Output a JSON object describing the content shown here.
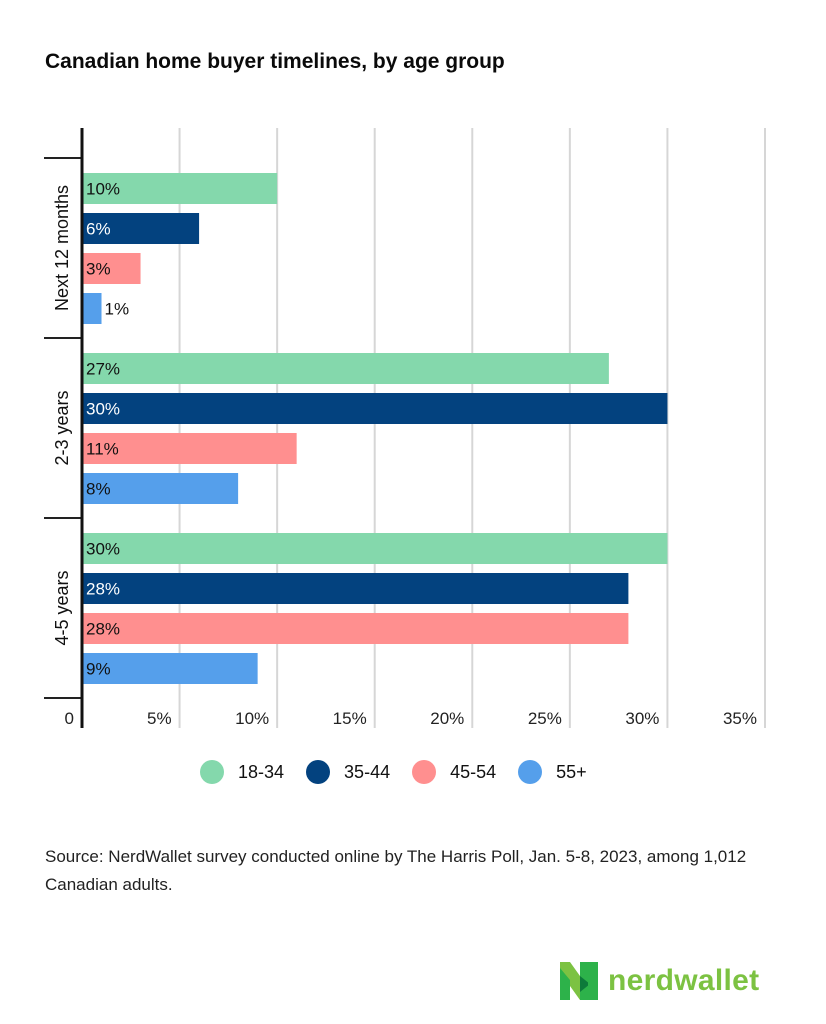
{
  "chart_data": {
    "type": "bar",
    "orientation": "horizontal",
    "title": "Canadian home buyer timelines, by age group",
    "xlabel": "",
    "ylabel": "",
    "xlim": [
      0,
      35
    ],
    "x_ticks": [
      "0",
      "5%",
      "10%",
      "15%",
      "20%",
      "25%",
      "30%",
      "35%"
    ],
    "x_tick_values": [
      0,
      5,
      10,
      15,
      20,
      25,
      30,
      35
    ],
    "grid": true,
    "categories": [
      "Next 12 months",
      "2-3 years",
      "4-5 years"
    ],
    "series": [
      {
        "name": "18-34",
        "color": "#84d8ac",
        "values": [
          10,
          27,
          30
        ],
        "labels": [
          "10%",
          "27%",
          "30%"
        ]
      },
      {
        "name": "35-44",
        "color": "#03427f",
        "values": [
          6,
          30,
          28
        ],
        "labels": [
          "6%",
          "30%",
          "28%"
        ]
      },
      {
        "name": "45-54",
        "color": "#ff8f8f",
        "values": [
          3,
          11,
          28
        ],
        "labels": [
          "3%",
          "11%",
          "28%"
        ]
      },
      {
        "name": "55+",
        "color": "#559feb",
        "values": [
          1,
          8,
          9
        ],
        "labels": [
          "1%",
          "8%",
          "9%"
        ]
      }
    ],
    "legend_position": "bottom"
  },
  "legend": [
    {
      "label": "18-34",
      "color": "#84d8ac"
    },
    {
      "label": "35-44",
      "color": "#03427f"
    },
    {
      "label": "45-54",
      "color": "#ff8f8f"
    },
    {
      "label": "55+",
      "color": "#559feb"
    }
  ],
  "source": "Source: NerdWallet survey conducted online by The Harris Poll, Jan. 5-8, 2023, among 1,012 Canadian adults.",
  "brand": {
    "name": "nerdwallet",
    "color": "#7cc242"
  }
}
